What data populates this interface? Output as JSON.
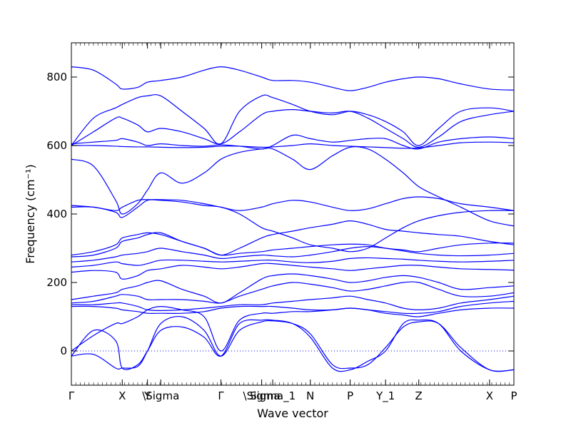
{
  "chart_data": {
    "type": "line",
    "xlabel": "Wave vector",
    "ylabel": "Frequency (cm⁻¹)",
    "ylim": [
      -100,
      900
    ],
    "yticks": [
      0,
      200,
      400,
      600,
      800
    ],
    "zero_line": true,
    "grid": false,
    "line_color": "#0000ff",
    "x_ticks": [
      {
        "label": "Γ",
        "x": 0.0
      },
      {
        "label": "X",
        "x": 1.15
      },
      {
        "label": "Y",
        "x": 1.72
      },
      {
        "label": "\\Sigma",
        "x": 2.02
      },
      {
        "label": "Γ",
        "x": 3.38
      },
      {
        "label": "\\Sigma",
        "x": 4.3
      },
      {
        "label": "Sigma_1",
        "x": 4.55
      },
      {
        "label": "N",
        "x": 5.4
      },
      {
        "label": "P",
        "x": 6.3
      },
      {
        "label": "Y_1",
        "x": 7.1
      },
      {
        "label": "Z",
        "x": 7.85
      },
      {
        "label": "X",
        "x": 9.45
      },
      {
        "label": "P",
        "x": 10.0
      }
    ],
    "xlim": [
      0,
      10
    ],
    "x": [
      0,
      0.5,
      1.0,
      1.15,
      1.5,
      1.72,
      2.02,
      2.5,
      3.0,
      3.38,
      3.8,
      4.3,
      4.55,
      5.0,
      5.4,
      5.9,
      6.3,
      6.7,
      7.1,
      7.5,
      7.85,
      8.3,
      8.8,
      9.45,
      10.0
    ],
    "series": [
      {
        "values": [
          -15,
          60,
          30,
          -50,
          -40,
          0,
          60,
          70,
          40,
          -15,
          80,
          90,
          90,
          80,
          40,
          -50,
          -55,
          -30,
          0,
          80,
          90,
          80,
          0,
          -55,
          -55
        ]
      },
      {
        "values": [
          -15,
          -10,
          -50,
          -50,
          -45,
          0,
          80,
          100,
          60,
          -15,
          60,
          85,
          88,
          80,
          50,
          -40,
          -50,
          -40,
          10,
          70,
          85,
          80,
          10,
          -55,
          -55
        ]
      },
      {
        "values": [
          0,
          45,
          80,
          80,
          100,
          120,
          130,
          120,
          100,
          0,
          90,
          110,
          110,
          115,
          115,
          120,
          125,
          120,
          115,
          110,
          110,
          115,
          130,
          140,
          145
        ]
      },
      {
        "values": [
          130,
          130,
          125,
          120,
          115,
          110,
          110,
          110,
          115,
          125,
          130,
          130,
          130,
          125,
          120,
          120,
          125,
          120,
          110,
          105,
          100,
          110,
          120,
          125,
          125
        ]
      },
      {
        "values": [
          135,
          135,
          140,
          140,
          130,
          120,
          118,
          120,
          125,
          130,
          135,
          135,
          140,
          145,
          150,
          155,
          160,
          150,
          140,
          125,
          120,
          125,
          140,
          150,
          160
        ]
      },
      {
        "values": [
          140,
          145,
          160,
          165,
          160,
          150,
          150,
          150,
          145,
          140,
          160,
          180,
          190,
          200,
          195,
          185,
          175,
          180,
          190,
          200,
          200,
          180,
          160,
          160,
          170
        ]
      },
      {
        "values": [
          150,
          160,
          170,
          180,
          190,
          200,
          205,
          180,
          160,
          140,
          170,
          210,
          220,
          225,
          220,
          210,
          200,
          205,
          215,
          220,
          215,
          200,
          180,
          185,
          190
        ]
      },
      {
        "values": [
          230,
          235,
          230,
          210,
          220,
          235,
          240,
          250,
          245,
          240,
          245,
          255,
          255,
          250,
          245,
          240,
          235,
          240,
          245,
          250,
          250,
          245,
          240,
          238,
          236
        ]
      },
      {
        "values": [
          245,
          250,
          260,
          255,
          250,
          255,
          265,
          265,
          262,
          260,
          262,
          265,
          265,
          260,
          258,
          262,
          270,
          272,
          270,
          268,
          265,
          262,
          260,
          262,
          265
        ]
      },
      {
        "values": [
          260,
          265,
          275,
          280,
          285,
          290,
          300,
          290,
          280,
          270,
          275,
          280,
          278,
          275,
          280,
          290,
          300,
          305,
          300,
          292,
          285,
          280,
          278,
          280,
          285
        ]
      },
      {
        "values": [
          275,
          280,
          300,
          320,
          330,
          340,
          345,
          320,
          300,
          280,
          285,
          290,
          295,
          300,
          305,
          310,
          312,
          310,
          300,
          295,
          290,
          300,
          310,
          315,
          315
        ]
      },
      {
        "values": [
          280,
          290,
          310,
          330,
          340,
          345,
          340,
          320,
          300,
          280,
          300,
          330,
          340,
          350,
          360,
          370,
          380,
          370,
          355,
          350,
          345,
          340,
          335,
          320,
          310
        ]
      },
      {
        "values": [
          420,
          420,
          405,
          390,
          420,
          440,
          440,
          435,
          425,
          420,
          400,
          360,
          350,
          330,
          310,
          300,
          290,
          300,
          330,
          360,
          380,
          395,
          405,
          410,
          410
        ]
      },
      {
        "values": [
          425,
          420,
          410,
          420,
          440,
          442,
          442,
          440,
          430,
          420,
          410,
          420,
          430,
          440,
          435,
          420,
          410,
          415,
          430,
          445,
          450,
          445,
          430,
          420,
          410
        ]
      },
      {
        "values": [
          560,
          540,
          440,
          400,
          430,
          470,
          520,
          490,
          520,
          560,
          580,
          590,
          590,
          560,
          530,
          570,
          595,
          590,
          560,
          520,
          480,
          450,
          420,
          380,
          365
        ]
      },
      {
        "values": [
          600,
          600,
          598,
          597,
          596,
          596,
          595,
          594,
          595,
          598,
          598,
          595,
          596,
          600,
          605,
          600,
          598,
          596,
          594,
          592,
          593,
          600,
          608,
          610,
          608
        ]
      },
      {
        "values": [
          605,
          610,
          615,
          620,
          610,
          600,
          605,
          600,
          598,
          602,
          598,
          590,
          600,
          630,
          620,
          610,
          615,
          620,
          620,
          600,
          590,
          610,
          620,
          625,
          620
        ]
      },
      {
        "values": [
          600,
          640,
          680,
          680,
          660,
          640,
          650,
          640,
          620,
          605,
          640,
          690,
          700,
          705,
          700,
          695,
          700,
          680,
          650,
          620,
          595,
          625,
          670,
          690,
          700
        ]
      },
      {
        "values": [
          600,
          680,
          710,
          720,
          740,
          745,
          745,
          700,
          650,
          605,
          700,
          745,
          740,
          720,
          700,
          690,
          700,
          690,
          670,
          640,
          600,
          650,
          700,
          710,
          700
        ]
      },
      {
        "values": [
          830,
          820,
          780,
          765,
          770,
          785,
          790,
          800,
          820,
          830,
          820,
          800,
          790,
          790,
          785,
          770,
          760,
          770,
          785,
          795,
          800,
          795,
          780,
          765,
          762
        ]
      }
    ]
  }
}
